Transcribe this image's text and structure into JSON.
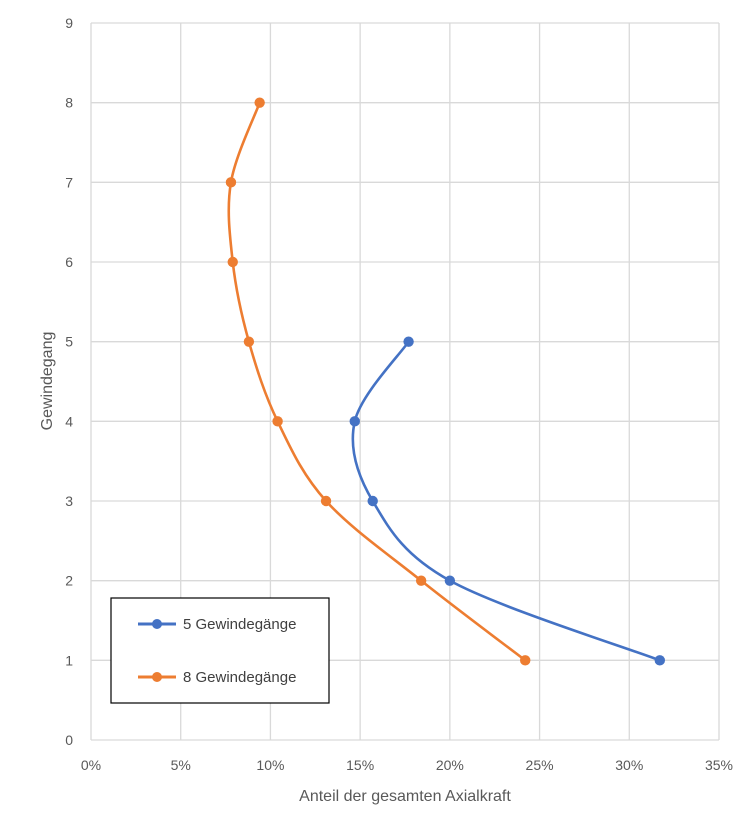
{
  "chart_data": {
    "type": "line",
    "xlabel": "Anteil der gesamten Axialkraft",
    "ylabel": "Gewindegang",
    "xlim": [
      0,
      35
    ],
    "ylim": [
      0,
      9
    ],
    "x_ticks": [
      "0%",
      "5%",
      "10%",
      "15%",
      "20%",
      "25%",
      "30%",
      "35%"
    ],
    "y_ticks": [
      "0",
      "1",
      "2",
      "3",
      "4",
      "5",
      "6",
      "7",
      "8",
      "9"
    ],
    "grid": true,
    "smooth": true,
    "legend": {
      "position": "bottom-left",
      "boxed": true
    },
    "series": [
      {
        "name": "5 Gewindegänge",
        "color": "#4472C4",
        "points": [
          {
            "x": 31.7,
            "y": 1
          },
          {
            "x": 20.0,
            "y": 2
          },
          {
            "x": 15.7,
            "y": 3
          },
          {
            "x": 14.7,
            "y": 4
          },
          {
            "x": 17.7,
            "y": 5
          }
        ]
      },
      {
        "name": "8 Gewindegänge",
        "color": "#ED7D31",
        "points": [
          {
            "x": 24.2,
            "y": 1
          },
          {
            "x": 18.4,
            "y": 2
          },
          {
            "x": 13.1,
            "y": 3
          },
          {
            "x": 10.4,
            "y": 4
          },
          {
            "x": 8.8,
            "y": 5
          },
          {
            "x": 7.9,
            "y": 6
          },
          {
            "x": 7.8,
            "y": 7
          },
          {
            "x": 9.4,
            "y": 8
          }
        ]
      }
    ]
  }
}
